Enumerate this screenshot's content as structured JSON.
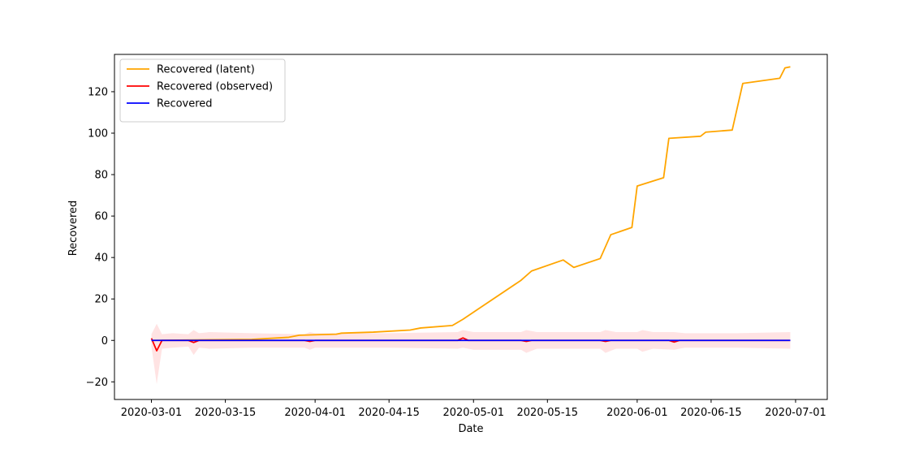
{
  "chart_data": {
    "type": "line",
    "title": "",
    "xlabel": "Date",
    "ylabel": "Recovered",
    "xlim": [
      "2020-02-23",
      "2020-07-07"
    ],
    "ylim": [
      -28.5,
      138
    ],
    "grid": false,
    "legend_position": "top-left",
    "x_ticks": [
      "2020-03-01",
      "2020-03-15",
      "2020-04-01",
      "2020-04-15",
      "2020-05-01",
      "2020-05-15",
      "2020-06-01",
      "2020-06-15",
      "2020-07-01"
    ],
    "y_ticks": [
      -20,
      0,
      20,
      40,
      60,
      80,
      100,
      120
    ],
    "band": {
      "color": "#ffc0c0",
      "points": [
        {
          "x": "2020-03-01",
          "low": -3,
          "high": 3
        },
        {
          "x": "2020-03-02",
          "low": -21,
          "high": 8
        },
        {
          "x": "2020-03-03",
          "low": -4,
          "high": 3
        },
        {
          "x": "2020-03-05",
          "low": -3.5,
          "high": 3.5
        },
        {
          "x": "2020-03-08",
          "low": -3,
          "high": 3
        },
        {
          "x": "2020-03-09",
          "low": -7,
          "high": 5
        },
        {
          "x": "2020-03-10",
          "low": -3.5,
          "high": 3.5
        },
        {
          "x": "2020-03-12",
          "low": -4,
          "high": 4
        },
        {
          "x": "2020-03-20",
          "low": -3.5,
          "high": 3.5
        },
        {
          "x": "2020-03-30",
          "low": -3.5,
          "high": 3
        },
        {
          "x": "2020-03-31",
          "low": -4.5,
          "high": 4
        },
        {
          "x": "2020-04-01",
          "low": -3.5,
          "high": 3.5
        },
        {
          "x": "2020-04-15",
          "low": -3.5,
          "high": 3.5
        },
        {
          "x": "2020-04-28",
          "low": -4,
          "high": 4
        },
        {
          "x": "2020-04-29",
          "low": -3.5,
          "high": 5
        },
        {
          "x": "2020-05-01",
          "low": -4.5,
          "high": 4
        },
        {
          "x": "2020-05-10",
          "low": -4.5,
          "high": 4
        },
        {
          "x": "2020-05-11",
          "low": -6,
          "high": 5
        },
        {
          "x": "2020-05-13",
          "low": -4,
          "high": 4
        },
        {
          "x": "2020-05-25",
          "low": -4,
          "high": 4
        },
        {
          "x": "2020-05-26",
          "low": -6,
          "high": 5
        },
        {
          "x": "2020-05-28",
          "low": -4,
          "high": 4
        },
        {
          "x": "2020-06-01",
          "low": -4,
          "high": 4
        },
        {
          "x": "2020-06-02",
          "low": -5.5,
          "high": 5
        },
        {
          "x": "2020-06-04",
          "low": -4,
          "high": 4
        },
        {
          "x": "2020-06-08",
          "low": -4.5,
          "high": 4
        },
        {
          "x": "2020-06-10",
          "low": -3.5,
          "high": 3.5
        },
        {
          "x": "2020-06-20",
          "low": -3.5,
          "high": 3.5
        },
        {
          "x": "2020-06-30",
          "low": -4,
          "high": 4
        }
      ]
    },
    "series": [
      {
        "name": "Recovered (latent)",
        "color": "#ffa500",
        "points": [
          [
            "2020-03-01",
            0
          ],
          [
            "2020-03-20",
            0.5
          ],
          [
            "2020-03-27",
            1.5
          ],
          [
            "2020-03-29",
            2.5
          ],
          [
            "2020-04-05",
            3
          ],
          [
            "2020-04-06",
            3.5
          ],
          [
            "2020-04-12",
            4
          ],
          [
            "2020-04-19",
            5
          ],
          [
            "2020-04-21",
            6
          ],
          [
            "2020-04-27",
            7.2
          ],
          [
            "2020-04-29",
            10.2
          ],
          [
            "2020-05-10",
            29
          ],
          [
            "2020-05-12",
            33.5
          ],
          [
            "2020-05-18",
            38.8
          ],
          [
            "2020-05-20",
            35.2
          ],
          [
            "2020-05-25",
            39.5
          ],
          [
            "2020-05-27",
            51
          ],
          [
            "2020-05-31",
            54.5
          ],
          [
            "2020-06-01",
            74.5
          ],
          [
            "2020-06-06",
            78.5
          ],
          [
            "2020-06-07",
            97.5
          ],
          [
            "2020-06-13",
            98.5
          ],
          [
            "2020-06-14",
            100.5
          ],
          [
            "2020-06-19",
            101.5
          ],
          [
            "2020-06-21",
            124
          ],
          [
            "2020-06-28",
            126.5
          ],
          [
            "2020-06-29",
            131.5
          ],
          [
            "2020-06-30",
            132
          ]
        ]
      },
      {
        "name": "Recovered (observed)",
        "color": "#ff0000",
        "points": [
          [
            "2020-03-01",
            1
          ],
          [
            "2020-03-02",
            -5
          ],
          [
            "2020-03-03",
            0
          ],
          [
            "2020-03-08",
            0
          ],
          [
            "2020-03-09",
            -1
          ],
          [
            "2020-03-10",
            0
          ],
          [
            "2020-03-30",
            0
          ],
          [
            "2020-03-31",
            -0.5
          ],
          [
            "2020-04-01",
            0
          ],
          [
            "2020-04-28",
            0
          ],
          [
            "2020-04-29",
            1.2
          ],
          [
            "2020-04-30",
            0
          ],
          [
            "2020-05-10",
            0
          ],
          [
            "2020-05-11",
            -0.5
          ],
          [
            "2020-05-12",
            0
          ],
          [
            "2020-05-25",
            0
          ],
          [
            "2020-05-26",
            -0.5
          ],
          [
            "2020-05-27",
            0
          ],
          [
            "2020-06-07",
            0
          ],
          [
            "2020-06-08",
            -0.8
          ],
          [
            "2020-06-09",
            0
          ],
          [
            "2020-06-30",
            0
          ]
        ]
      },
      {
        "name": "Recovered",
        "color": "#0000ff",
        "points": [
          [
            "2020-03-01",
            0
          ],
          [
            "2020-06-30",
            0
          ]
        ]
      }
    ]
  }
}
